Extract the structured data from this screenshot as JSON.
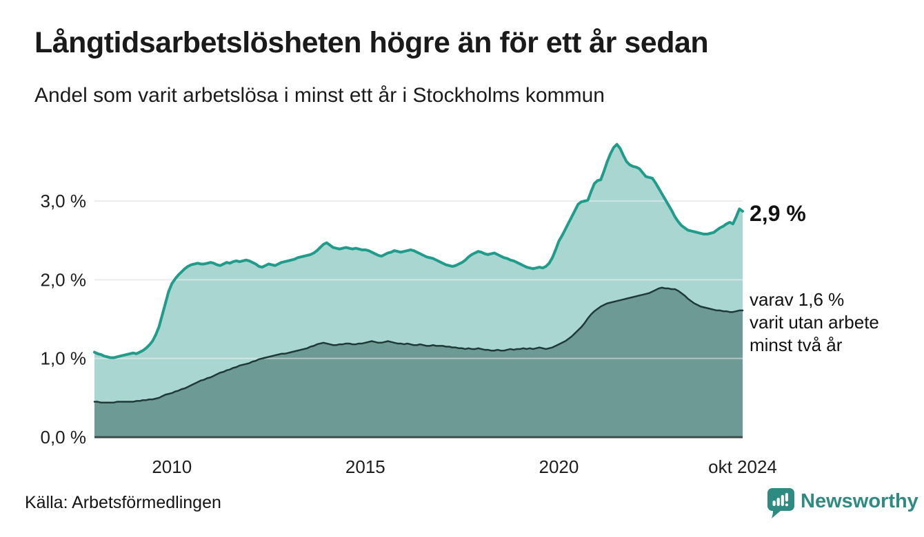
{
  "header": {
    "title": "Långtidsarbetslösheten högre än för ett år sedan",
    "subtitle": "Andel som varit arbetslösa i minst ett år i Stockholms kommun"
  },
  "annotations": {
    "latest_value": "2,9 %",
    "secondary_line1": "varav 1,6 %",
    "secondary_line2": "varit utan arbete",
    "secondary_line3": "minst två år"
  },
  "footer": {
    "source": "Källa: Arbetsförmedlingen",
    "brand": "Newsworthy"
  },
  "chart_data": {
    "type": "area",
    "frequency": "monthly",
    "x_start": "jan 2008",
    "x_end": "okt 2024",
    "ylim": [
      0,
      3.85
    ],
    "grid": true,
    "gridline_color": "#dcdcdc",
    "gridline_overlay_color": "rgba(255,255,255,0.45)",
    "axis_line_color": "#3d4a47",
    "y_ticks": [
      "0,0 %",
      "1,0 %",
      "2,0 %",
      "3,0 %"
    ],
    "x_ticks": [
      {
        "label": "2010",
        "index": 24
      },
      {
        "label": "2015",
        "index": 84
      },
      {
        "label": "2020",
        "index": 144
      },
      {
        "label": "okt 2024",
        "index": 201
      }
    ],
    "series": [
      {
        "name": "Arbetslösa minst ett år",
        "line_color": "#1f9c8a",
        "fill_color": "#a9d6d0",
        "latest_value_pct": 2.9,
        "values": [
          1.08,
          1.06,
          1.05,
          1.03,
          1.02,
          1.01,
          1.01,
          1.02,
          1.03,
          1.04,
          1.05,
          1.06,
          1.07,
          1.06,
          1.08,
          1.1,
          1.13,
          1.17,
          1.22,
          1.3,
          1.4,
          1.55,
          1.7,
          1.85,
          1.95,
          2.01,
          2.06,
          2.1,
          2.14,
          2.17,
          2.19,
          2.2,
          2.21,
          2.2,
          2.2,
          2.21,
          2.22,
          2.21,
          2.19,
          2.18,
          2.2,
          2.22,
          2.21,
          2.23,
          2.24,
          2.23,
          2.24,
          2.25,
          2.24,
          2.22,
          2.2,
          2.17,
          2.16,
          2.18,
          2.2,
          2.19,
          2.18,
          2.2,
          2.22,
          2.23,
          2.24,
          2.25,
          2.26,
          2.28,
          2.29,
          2.3,
          2.31,
          2.32,
          2.34,
          2.37,
          2.41,
          2.45,
          2.47,
          2.44,
          2.41,
          2.4,
          2.39,
          2.4,
          2.41,
          2.4,
          2.39,
          2.4,
          2.39,
          2.38,
          2.38,
          2.37,
          2.35,
          2.33,
          2.31,
          2.3,
          2.32,
          2.34,
          2.35,
          2.37,
          2.36,
          2.35,
          2.36,
          2.37,
          2.38,
          2.37,
          2.35,
          2.33,
          2.31,
          2.29,
          2.28,
          2.27,
          2.25,
          2.23,
          2.21,
          2.19,
          2.18,
          2.17,
          2.18,
          2.2,
          2.22,
          2.25,
          2.29,
          2.32,
          2.34,
          2.36,
          2.35,
          2.33,
          2.32,
          2.33,
          2.34,
          2.32,
          2.3,
          2.28,
          2.27,
          2.25,
          2.24,
          2.22,
          2.2,
          2.18,
          2.16,
          2.15,
          2.14,
          2.15,
          2.16,
          2.15,
          2.17,
          2.21,
          2.28,
          2.38,
          2.49,
          2.56,
          2.64,
          2.72,
          2.8,
          2.88,
          2.96,
          2.99,
          3.0,
          3.01,
          3.12,
          3.22,
          3.26,
          3.27,
          3.38,
          3.5,
          3.6,
          3.68,
          3.72,
          3.67,
          3.58,
          3.5,
          3.46,
          3.44,
          3.43,
          3.41,
          3.36,
          3.31,
          3.3,
          3.29,
          3.23,
          3.16,
          3.09,
          3.02,
          2.95,
          2.88,
          2.8,
          2.74,
          2.69,
          2.66,
          2.63,
          2.62,
          2.61,
          2.6,
          2.59,
          2.58,
          2.58,
          2.59,
          2.6,
          2.63,
          2.66,
          2.68,
          2.71,
          2.73,
          2.71,
          2.8,
          2.9,
          2.87
        ]
      },
      {
        "name": "varav arbetslösa minst två år",
        "line_color": "#1d3a37",
        "fill_color": "#6e9a95",
        "latest_value_pct": 1.6,
        "values": [
          0.45,
          0.45,
          0.44,
          0.44,
          0.44,
          0.44,
          0.44,
          0.45,
          0.45,
          0.45,
          0.45,
          0.45,
          0.45,
          0.46,
          0.46,
          0.47,
          0.47,
          0.48,
          0.48,
          0.49,
          0.5,
          0.52,
          0.54,
          0.55,
          0.56,
          0.58,
          0.59,
          0.61,
          0.62,
          0.64,
          0.66,
          0.68,
          0.7,
          0.72,
          0.73,
          0.75,
          0.76,
          0.78,
          0.8,
          0.82,
          0.83,
          0.85,
          0.86,
          0.88,
          0.89,
          0.91,
          0.92,
          0.93,
          0.94,
          0.96,
          0.97,
          0.99,
          1.0,
          1.01,
          1.02,
          1.03,
          1.04,
          1.05,
          1.06,
          1.06,
          1.07,
          1.08,
          1.09,
          1.1,
          1.11,
          1.12,
          1.13,
          1.15,
          1.16,
          1.18,
          1.19,
          1.2,
          1.19,
          1.18,
          1.17,
          1.17,
          1.18,
          1.18,
          1.19,
          1.19,
          1.18,
          1.18,
          1.19,
          1.19,
          1.2,
          1.21,
          1.22,
          1.21,
          1.2,
          1.2,
          1.21,
          1.22,
          1.21,
          1.2,
          1.19,
          1.19,
          1.18,
          1.19,
          1.18,
          1.17,
          1.17,
          1.18,
          1.17,
          1.16,
          1.16,
          1.17,
          1.16,
          1.16,
          1.16,
          1.15,
          1.15,
          1.14,
          1.14,
          1.13,
          1.13,
          1.12,
          1.13,
          1.12,
          1.12,
          1.13,
          1.12,
          1.11,
          1.11,
          1.1,
          1.1,
          1.11,
          1.1,
          1.1,
          1.11,
          1.12,
          1.11,
          1.12,
          1.12,
          1.13,
          1.12,
          1.13,
          1.12,
          1.13,
          1.14,
          1.13,
          1.12,
          1.13,
          1.14,
          1.16,
          1.18,
          1.2,
          1.22,
          1.25,
          1.28,
          1.32,
          1.36,
          1.4,
          1.45,
          1.51,
          1.56,
          1.6,
          1.63,
          1.66,
          1.68,
          1.7,
          1.71,
          1.72,
          1.73,
          1.74,
          1.75,
          1.76,
          1.77,
          1.78,
          1.79,
          1.8,
          1.81,
          1.82,
          1.83,
          1.85,
          1.87,
          1.89,
          1.9,
          1.89,
          1.89,
          1.88,
          1.88,
          1.86,
          1.83,
          1.8,
          1.76,
          1.73,
          1.7,
          1.68,
          1.66,
          1.65,
          1.64,
          1.63,
          1.62,
          1.61,
          1.61,
          1.6,
          1.6,
          1.59,
          1.59,
          1.6,
          1.61,
          1.61
        ]
      }
    ]
  }
}
